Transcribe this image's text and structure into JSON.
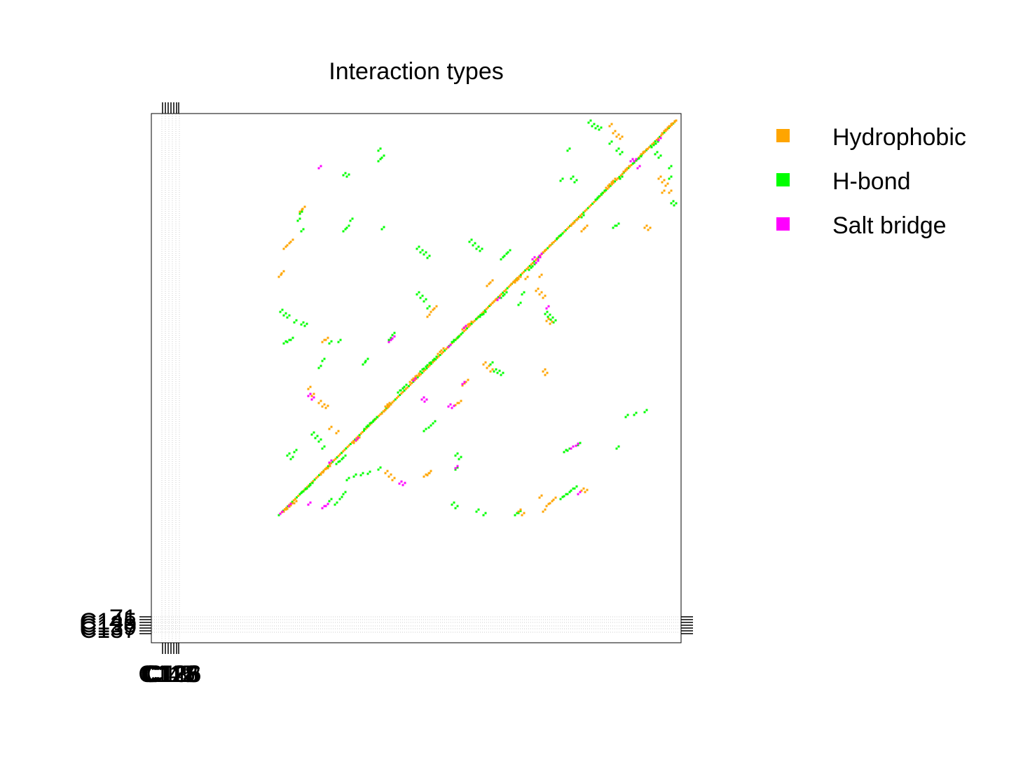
{
  "chart_data": {
    "type": "scatter",
    "title": "Interaction types",
    "xlabel": "",
    "ylabel": "",
    "legend_position": "right",
    "legend": [
      {
        "name": "Hydrophobic",
        "color": "#FFA500"
      },
      {
        "name": "H-bond",
        "color": "#00FF00"
      },
      {
        "name": "Salt bridge",
        "color": "#FF00FF"
      }
    ],
    "x_tick_labels": [
      "C145",
      "C117",
      "C128",
      "C126",
      "C138",
      "C116"
    ],
    "y_tick_labels": [
      "Z1",
      "C145",
      "C128",
      "C139",
      "C137"
    ],
    "grid": true,
    "diagonal_segments": [
      {
        "type": "Hydrophobic",
        "from": [
          398,
          735
        ],
        "to": [
          965,
          172
        ]
      }
    ],
    "clusters": [
      {
        "type": "H-bond",
        "points": [
          [
            428,
            705
          ],
          [
            433,
            701
          ],
          [
            438,
            697
          ],
          [
            443,
            692
          ],
          [
            480,
            662
          ],
          [
            485,
            658
          ],
          [
            490,
            653
          ],
          [
            520,
            612
          ],
          [
            525,
            607
          ],
          [
            530,
            603
          ],
          [
            535,
            598
          ],
          [
            568,
            560
          ],
          [
            572,
            557
          ],
          [
            577,
            552
          ],
          [
            600,
            530
          ],
          [
            605,
            526
          ],
          [
            610,
            521
          ],
          [
            615,
            517
          ],
          [
            620,
            512
          ],
          [
            645,
            488
          ],
          [
            650,
            485
          ],
          [
            655,
            480
          ],
          [
            680,
            455
          ],
          [
            685,
            452
          ],
          [
            690,
            448
          ],
          [
            715,
            425
          ],
          [
            720,
            420
          ],
          [
            755,
            385
          ],
          [
            760,
            380
          ],
          [
            795,
            340
          ],
          [
            800,
            336
          ],
          [
            830,
            310
          ],
          [
            850,
            285
          ],
          [
            855,
            280
          ],
          [
            860,
            275
          ],
          [
            885,
            255
          ],
          [
            905,
            232
          ],
          [
            912,
            226
          ],
          [
            930,
            210
          ],
          [
            936,
            205
          ]
        ]
      },
      {
        "type": "Hydrophobic",
        "points": [
          [
            405,
            730
          ],
          [
            410,
            726
          ],
          [
            415,
            721
          ],
          [
            420,
            718
          ],
          [
            458,
            677
          ],
          [
            462,
            672
          ],
          [
            468,
            668
          ],
          [
            505,
            632
          ],
          [
            510,
            627
          ],
          [
            545,
            590
          ],
          [
            550,
            585
          ],
          [
            555,
            580
          ],
          [
            585,
            545
          ],
          [
            590,
            540
          ],
          [
            595,
            536
          ],
          [
            625,
            505
          ],
          [
            630,
            500
          ],
          [
            660,
            470
          ],
          [
            665,
            466
          ],
          [
            670,
            462
          ],
          [
            700,
            435
          ],
          [
            705,
            430
          ],
          [
            735,
            403
          ],
          [
            740,
            398
          ],
          [
            770,
            365
          ],
          [
            775,
            360
          ],
          [
            785,
            350
          ],
          [
            815,
            322
          ],
          [
            820,
            317
          ],
          [
            825,
            312
          ],
          [
            865,
            268
          ],
          [
            870,
            263
          ],
          [
            875,
            258
          ],
          [
            890,
            245
          ],
          [
            895,
            240
          ],
          [
            915,
            220
          ],
          [
            920,
            216
          ],
          [
            945,
            190
          ],
          [
            950,
            185
          ],
          [
            955,
            180
          ],
          [
            960,
            176
          ]
        ]
      },
      {
        "type": "Salt bridge",
        "points": [
          [
            400,
            733
          ],
          [
            412,
            722
          ],
          [
            440,
            720
          ],
          [
            470,
            660
          ],
          [
            508,
            628
          ],
          [
            590,
            543
          ],
          [
            640,
            495
          ],
          [
            662,
            468
          ],
          [
            710,
            428
          ],
          [
            768,
            370
          ],
          [
            822,
            636
          ],
          [
            905,
            230
          ],
          [
            940,
            200
          ]
        ]
      },
      {
        "type": "H-bond",
        "points": [
          [
            410,
            650
          ],
          [
            415,
            655
          ],
          [
            420,
            645
          ],
          [
            445,
            620
          ],
          [
            450,
            625
          ],
          [
            455,
            630
          ],
          [
            460,
            640
          ],
          [
            470,
            715
          ],
          [
            478,
            720
          ],
          [
            485,
            712
          ],
          [
            490,
            705
          ],
          [
            495,
            685
          ],
          [
            505,
            680
          ],
          [
            515,
            678
          ],
          [
            525,
            676
          ],
          [
            540,
            670
          ],
          [
            605,
            615
          ],
          [
            612,
            610
          ],
          [
            618,
            604
          ],
          [
            645,
            720
          ],
          [
            650,
            725
          ],
          [
            680,
            730
          ],
          [
            690,
            735
          ],
          [
            735,
            735
          ],
          [
            740,
            732
          ],
          [
            800,
            712
          ],
          [
            805,
            708
          ],
          [
            810,
            705
          ],
          [
            815,
            700
          ],
          [
            820,
            697
          ],
          [
            805,
            645
          ],
          [
            810,
            643
          ],
          [
            815,
            640
          ],
          [
            825,
            635
          ],
          [
            880,
            640
          ],
          [
            893,
            595
          ],
          [
            905,
            592
          ],
          [
            920,
            588
          ],
          [
            518,
            520
          ],
          [
            522,
            515
          ],
          [
            455,
            525
          ],
          [
            460,
            515
          ],
          [
            595,
            420
          ],
          [
            600,
            425
          ],
          [
            605,
            430
          ],
          [
            610,
            440
          ],
          [
            470,
            490
          ],
          [
            483,
            488
          ],
          [
            555,
            485
          ],
          [
            560,
            478
          ],
          [
            490,
            250
          ],
          [
            495,
            252
          ],
          [
            540,
            230
          ],
          [
            545,
            225
          ],
          [
            540,
            215
          ],
          [
            490,
            330
          ],
          [
            495,
            325
          ],
          [
            500,
            315
          ],
          [
            545,
            327
          ],
          [
            428,
            305
          ],
          [
            425,
            315
          ],
          [
            430,
            330
          ],
          [
            400,
            445
          ],
          [
            405,
            450
          ],
          [
            410,
            453
          ],
          [
            420,
            460
          ],
          [
            430,
            463
          ],
          [
            435,
            465
          ],
          [
            405,
            490
          ],
          [
            410,
            488
          ],
          [
            415,
            485
          ],
          [
            840,
            175
          ],
          [
            845,
            180
          ],
          [
            850,
            183
          ],
          [
            855,
            185
          ],
          [
            870,
            205
          ],
          [
            880,
            215
          ],
          [
            885,
            220
          ],
          [
            810,
            215
          ],
          [
            815,
            255
          ],
          [
            820,
            260
          ],
          [
            800,
            258
          ],
          [
            955,
            240
          ],
          [
            955,
            255
          ],
          [
            958,
            290
          ],
          [
            962,
            293
          ],
          [
            935,
            220
          ],
          [
            940,
            225
          ],
          [
            778,
            448
          ],
          [
            782,
            452
          ],
          [
            786,
            456
          ],
          [
            790,
            460
          ],
          [
            880,
            322
          ],
          [
            875,
            325
          ],
          [
            670,
            345
          ],
          [
            675,
            350
          ],
          [
            680,
            355
          ],
          [
            685,
            358
          ],
          [
            715,
            370
          ],
          [
            720,
            365
          ],
          [
            725,
            360
          ],
          [
            745,
            420
          ],
          [
            740,
            435
          ],
          [
            700,
            520
          ],
          [
            705,
            530
          ],
          [
            710,
            532
          ],
          [
            715,
            535
          ],
          [
            595,
            355
          ],
          [
            600,
            360
          ],
          [
            605,
            363
          ],
          [
            610,
            368
          ],
          [
            650,
            650
          ],
          [
            655,
            655
          ],
          [
            650,
            670
          ]
        ]
      },
      {
        "type": "Hydrophobic",
        "points": [
          [
            398,
            395
          ],
          [
            402,
            390
          ],
          [
            405,
            355
          ],
          [
            410,
            350
          ],
          [
            415,
            345
          ],
          [
            455,
            575
          ],
          [
            460,
            580
          ],
          [
            465,
            582
          ],
          [
            440,
            555
          ],
          [
            445,
            565
          ],
          [
            550,
            675
          ],
          [
            555,
            680
          ],
          [
            560,
            685
          ],
          [
            605,
            680
          ],
          [
            610,
            678
          ],
          [
            612,
            675
          ],
          [
            465,
            485
          ],
          [
            460,
            488
          ],
          [
            550,
            580
          ],
          [
            553,
            578
          ],
          [
            690,
            520
          ],
          [
            695,
            525
          ],
          [
            700,
            530
          ],
          [
            775,
            530
          ],
          [
            778,
            535
          ],
          [
            620,
            440
          ],
          [
            615,
            445
          ],
          [
            610,
            452
          ],
          [
            765,
            415
          ],
          [
            770,
            420
          ],
          [
            775,
            425
          ],
          [
            780,
            458
          ],
          [
            785,
            462
          ],
          [
            650,
            578
          ],
          [
            655,
            575
          ],
          [
            660,
            550
          ],
          [
            665,
            545
          ],
          [
            695,
            408
          ],
          [
            700,
            403
          ],
          [
            730,
            405
          ],
          [
            735,
            400
          ],
          [
            750,
            398
          ],
          [
            770,
            395
          ],
          [
            875,
            190
          ],
          [
            880,
            195
          ],
          [
            885,
            198
          ],
          [
            870,
            180
          ],
          [
            940,
            255
          ],
          [
            945,
            260
          ],
          [
            950,
            265
          ],
          [
            945,
            275
          ],
          [
            955,
            275
          ],
          [
            830,
            330
          ],
          [
            835,
            325
          ],
          [
            920,
            325
          ],
          [
            925,
            328
          ],
          [
            770,
            710
          ],
          [
            775,
            730
          ],
          [
            780,
            722
          ],
          [
            785,
            718
          ],
          [
            790,
            713
          ],
          [
            830,
            700
          ],
          [
            835,
            702
          ],
          [
            740,
            730
          ],
          [
            745,
            735
          ],
          [
            428,
            302
          ],
          [
            432,
            298
          ],
          [
            470,
            612
          ],
          [
            480,
            618
          ]
        ]
      },
      {
        "type": "Salt bridge",
        "points": [
          [
            440,
            565
          ],
          [
            445,
            570
          ],
          [
            460,
            725
          ],
          [
            465,
            722
          ],
          [
            570,
            690
          ],
          [
            575,
            692
          ],
          [
            555,
            488
          ],
          [
            560,
            483
          ],
          [
            455,
            240
          ],
          [
            602,
            570
          ],
          [
            606,
            573
          ],
          [
            640,
            580
          ],
          [
            645,
            582
          ],
          [
            650,
            668
          ],
          [
            660,
            548
          ],
          [
            770,
            365
          ],
          [
            765,
            375
          ],
          [
            760,
            370
          ],
          [
            780,
            440
          ],
          [
            900,
            230
          ],
          [
            910,
            240
          ],
          [
            815,
            640
          ],
          [
            822,
            636
          ],
          [
            825,
            705
          ]
        ]
      }
    ]
  }
}
